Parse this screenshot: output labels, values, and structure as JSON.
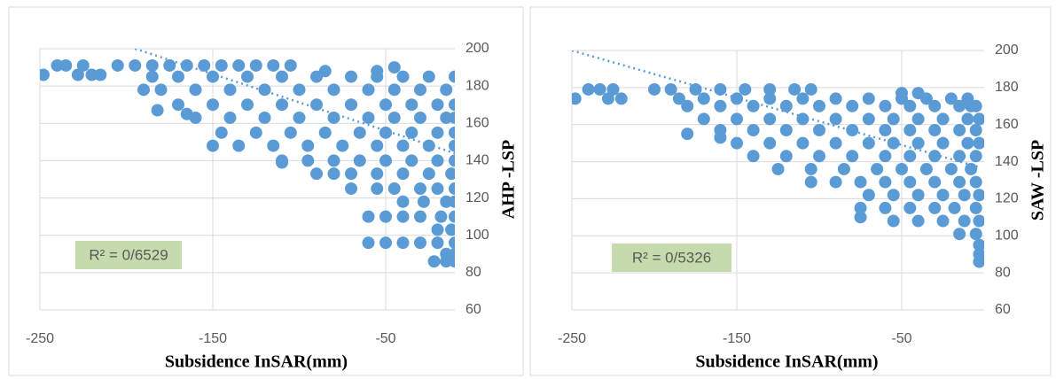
{
  "chart_data": [
    {
      "type": "scatter",
      "color": "#5b9bd5",
      "grid": true,
      "xlabel": "Subsidence InSAR(mm)",
      "ylabel": "AHP -LSP",
      "annotation": "R² = 0/6529",
      "xlim": [
        -250,
        -10
      ],
      "xticks": [
        -250,
        -150,
        -50
      ],
      "ylim": [
        60,
        200
      ],
      "yticks": [
        60,
        80,
        100,
        120,
        140,
        160,
        180,
        200
      ],
      "trendline": {
        "x": [
          -195,
          -10
        ],
        "values": [
          200,
          144
        ]
      },
      "x": [
        -248,
        -240,
        -235,
        -228,
        -225,
        -220,
        -215,
        -205,
        -195,
        -185,
        -175,
        -165,
        -155,
        -145,
        -135,
        -125,
        -115,
        -105,
        -185,
        -170,
        -150,
        -130,
        -110,
        -90,
        -70,
        -55,
        -40,
        -25,
        -10,
        -190,
        -180,
        -160,
        -140,
        -120,
        -100,
        -80,
        -60,
        -45,
        -30,
        -15,
        -170,
        -150,
        -130,
        -110,
        -90,
        -70,
        -50,
        -35,
        -20,
        -10,
        -160,
        -140,
        -120,
        -100,
        -80,
        -60,
        -45,
        -30,
        -15,
        -10,
        -145,
        -125,
        -105,
        -85,
        -65,
        -50,
        -35,
        -20,
        -10,
        -150,
        -135,
        -115,
        -95,
        -75,
        -55,
        -40,
        -25,
        -10,
        -110,
        -95,
        -80,
        -65,
        -50,
        -35,
        -20,
        -10,
        -90,
        -70,
        -55,
        -40,
        -25,
        -12,
        -70,
        -55,
        -45,
        -30,
        -20,
        -10,
        -40,
        -28,
        -15,
        -10,
        -60,
        -50,
        -40,
        -30,
        -18,
        -10,
        -20,
        -12,
        -60,
        -50,
        -40,
        -30,
        -20,
        -10,
        -15,
        -10,
        -22,
        -15,
        -10,
        -182,
        -165,
        -110,
        -80,
        -45,
        -55,
        -85
      ],
      "values": [
        186,
        191,
        191,
        186,
        191,
        186,
        186,
        191,
        191,
        191,
        191,
        191,
        191,
        191,
        191,
        191,
        191,
        191,
        185,
        185,
        185,
        185,
        185,
        185,
        185,
        185,
        185,
        185,
        185,
        178,
        178,
        178,
        178,
        178,
        178,
        178,
        178,
        178,
        178,
        178,
        170,
        170,
        170,
        170,
        170,
        170,
        170,
        170,
        170,
        170,
        163,
        163,
        163,
        163,
        163,
        163,
        163,
        163,
        163,
        163,
        155,
        155,
        155,
        155,
        155,
        155,
        155,
        155,
        155,
        148,
        148,
        148,
        148,
        148,
        148,
        148,
        148,
        148,
        140,
        140,
        140,
        140,
        140,
        140,
        140,
        140,
        133,
        133,
        133,
        133,
        133,
        133,
        125,
        125,
        125,
        125,
        125,
        125,
        118,
        118,
        118,
        118,
        110,
        110,
        110,
        110,
        110,
        110,
        103,
        103,
        96,
        96,
        96,
        96,
        96,
        96,
        90,
        90,
        86,
        86,
        86,
        167,
        165,
        139,
        133,
        190,
        188,
        188
      ]
    },
    {
      "type": "scatter",
      "color": "#5b9bd5",
      "grid": true,
      "xlabel": "Subsidence InSAR(mm)",
      "ylabel": "SAW -LSP",
      "annotation": "R² = 0/5326",
      "xlim": [
        -250,
        0
      ],
      "xticks": [
        -250,
        -150,
        -50
      ],
      "ylim": [
        60,
        200
      ],
      "yticks": [
        60,
        80,
        100,
        120,
        140,
        160,
        180,
        200
      ],
      "trendline": {
        "x": [
          -250,
          -3
        ],
        "values": [
          200,
          137
        ]
      },
      "x": [
        -248,
        -240,
        -233,
        -228,
        -225,
        -220,
        -200,
        -190,
        -175,
        -160,
        -145,
        -130,
        -115,
        -105,
        -185,
        -170,
        -150,
        -130,
        -110,
        -90,
        -70,
        -50,
        -35,
        -20,
        -10,
        -180,
        -160,
        -140,
        -120,
        -100,
        -80,
        -60,
        -45,
        -30,
        -15,
        -5,
        -170,
        -150,
        -130,
        -110,
        -90,
        -70,
        -55,
        -40,
        -25,
        -10,
        -3,
        -160,
        -140,
        -120,
        -100,
        -80,
        -60,
        -45,
        -30,
        -15,
        -5,
        -150,
        -130,
        -110,
        -90,
        -70,
        -55,
        -40,
        -25,
        -10,
        -3,
        -140,
        -120,
        -100,
        -80,
        -60,
        -45,
        -30,
        -15,
        -5,
        -125,
        -105,
        -85,
        -65,
        -50,
        -35,
        -20,
        -8,
        -105,
        -90,
        -75,
        -60,
        -45,
        -30,
        -15,
        -5,
        -70,
        -55,
        -40,
        -25,
        -12,
        -3,
        -75,
        -60,
        -45,
        -30,
        -18,
        -5,
        -55,
        -40,
        -25,
        -12,
        -3,
        -15,
        -5,
        -3,
        -3,
        -3,
        -180,
        -160,
        -75,
        -50,
        -40,
        -8
      ],
      "values": [
        174,
        179,
        179,
        174,
        179,
        174,
        179,
        179,
        179,
        179,
        179,
        179,
        179,
        179,
        174,
        174,
        174,
        174,
        174,
        174,
        174,
        174,
        174,
        174,
        174,
        170,
        170,
        170,
        170,
        170,
        170,
        170,
        170,
        170,
        170,
        170,
        163,
        163,
        163,
        163,
        163,
        163,
        163,
        163,
        163,
        163,
        163,
        157,
        157,
        157,
        157,
        157,
        157,
        157,
        157,
        157,
        157,
        150,
        150,
        150,
        150,
        150,
        150,
        150,
        150,
        150,
        150,
        143,
        143,
        143,
        143,
        143,
        143,
        143,
        143,
        143,
        136,
        136,
        136,
        136,
        136,
        136,
        136,
        136,
        129,
        129,
        129,
        129,
        129,
        129,
        129,
        129,
        122,
        122,
        122,
        122,
        122,
        122,
        115,
        115,
        115,
        115,
        115,
        115,
        108,
        108,
        108,
        108,
        108,
        101,
        101,
        95,
        90,
        86,
        155,
        153,
        110,
        177,
        177,
        170
      ]
    }
  ]
}
